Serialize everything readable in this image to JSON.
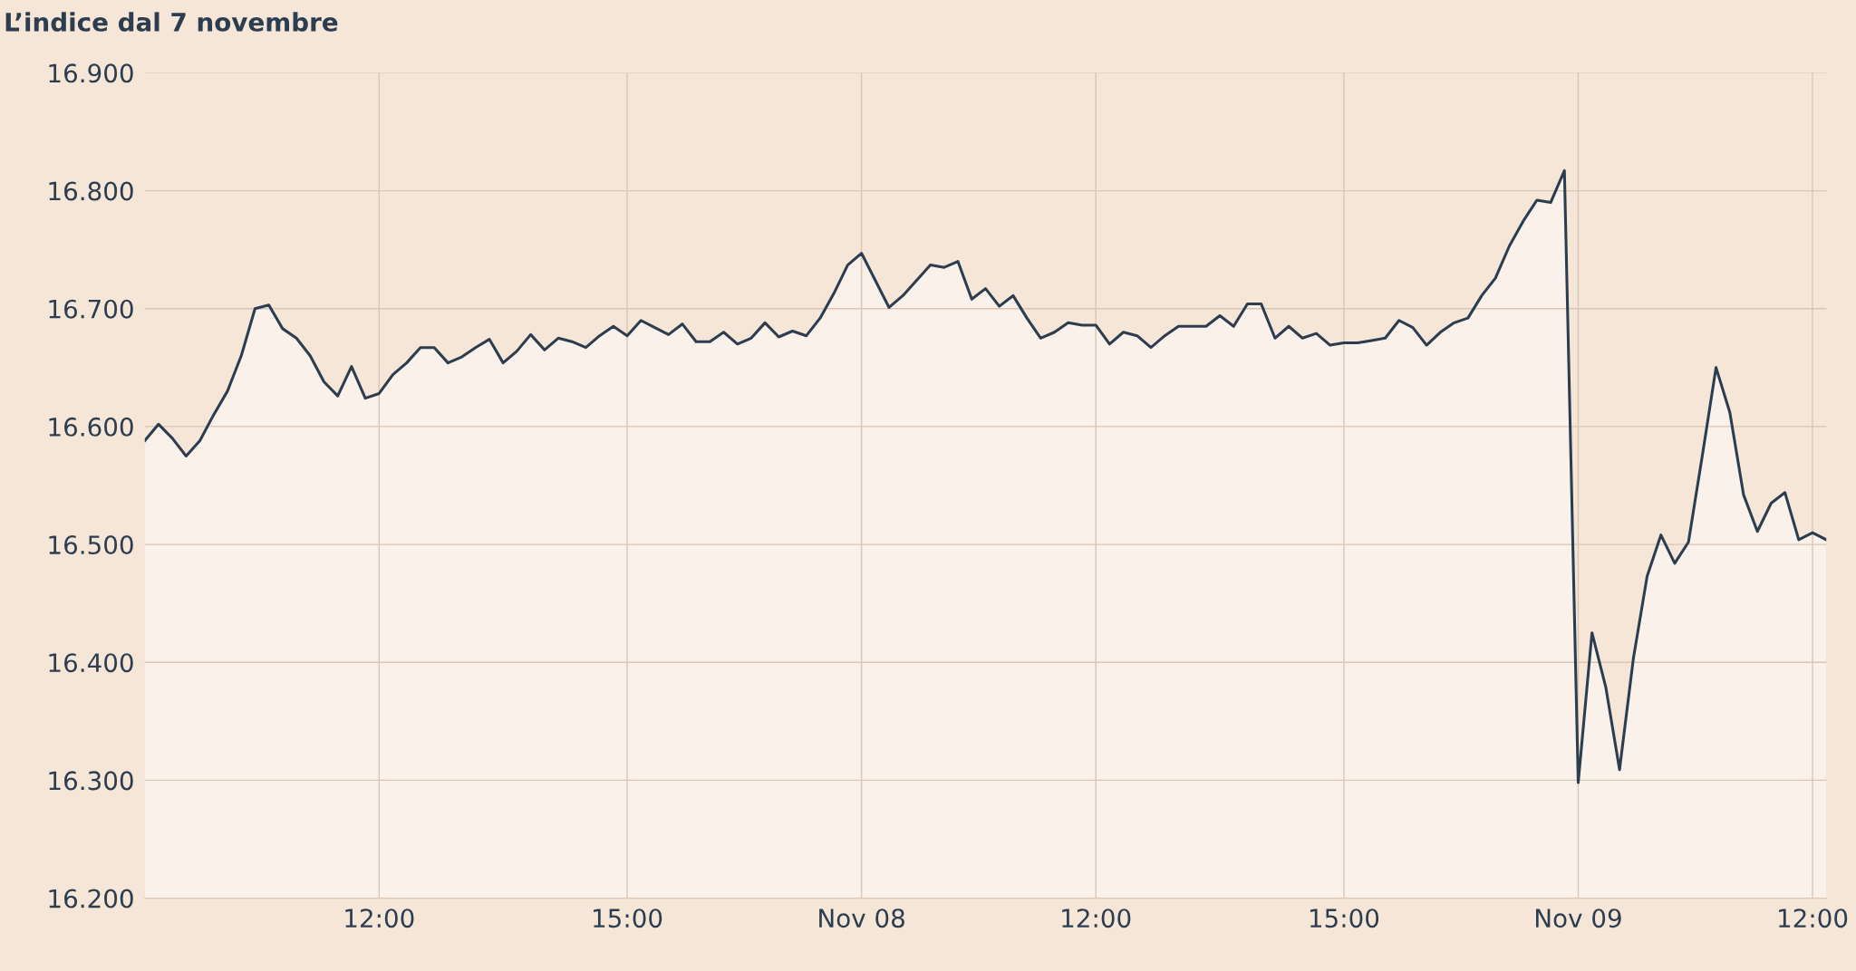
{
  "chart_data": {
    "type": "area",
    "title": "L’indice dal 7 novembre",
    "categories": [
      null,
      null,
      null,
      null,
      null,
      null,
      null,
      null,
      null,
      null,
      null,
      null,
      null,
      null,
      null,
      null,
      null,
      "12:00",
      null,
      null,
      null,
      null,
      null,
      null,
      null,
      null,
      null,
      null,
      null,
      null,
      null,
      null,
      null,
      null,
      null,
      "15:00",
      null,
      null,
      null,
      null,
      null,
      null,
      null,
      null,
      null,
      null,
      null,
      null,
      null,
      null,
      null,
      null,
      "Nov 08",
      null,
      null,
      null,
      null,
      null,
      null,
      null,
      null,
      null,
      null,
      null,
      null,
      null,
      null,
      null,
      null,
      "12:00",
      null,
      null,
      null,
      null,
      null,
      null,
      null,
      null,
      null,
      null,
      null,
      null,
      null,
      null,
      null,
      null,
      null,
      "15:00",
      null,
      null,
      null,
      null,
      null,
      null,
      null,
      null,
      null,
      null,
      null,
      null,
      null,
      null,
      null,
      null,
      "Nov 09",
      null,
      null,
      null,
      null,
      null,
      null,
      null,
      null,
      null,
      null,
      null,
      null,
      null,
      null,
      null,
      null,
      "12:00",
      null
    ],
    "series": [
      {
        "color": "#2b3d4f",
        "values": [
          16588,
          16602,
          16590,
          16575,
          16588,
          16610,
          16630,
          16660,
          16700,
          16703,
          16683,
          16675,
          16660,
          16638,
          16626,
          16651,
          16624,
          16628,
          16644,
          16654,
          16667,
          16667,
          16654,
          16659,
          16667,
          16674,
          16654,
          16664,
          16678,
          16665,
          16675,
          16672,
          16667,
          16677,
          16685,
          16677,
          16690,
          16684,
          16678,
          16687,
          16672,
          16672,
          16680,
          16670,
          16675,
          16688,
          16676,
          16681,
          16677,
          16692,
          16713,
          16737,
          16747,
          16724,
          16701,
          16711,
          16724,
          16737,
          16735,
          16740,
          16708,
          16717,
          16702,
          16711,
          16692,
          16675,
          16680,
          16688,
          16686,
          16686,
          16670,
          16680,
          16677,
          16667,
          16677,
          16685,
          16685,
          16685,
          16694,
          16685,
          16704,
          16704,
          16675,
          16685,
          16675,
          16679,
          16669,
          16671,
          16671,
          16673,
          16675,
          16690,
          16684,
          16669,
          16680,
          16688,
          16692,
          16711,
          16726,
          16753,
          16774,
          16792,
          16790,
          16817,
          16298,
          16425,
          16379,
          16309,
          16403,
          16473,
          16508,
          16484,
          16502,
          16575,
          16650,
          16612,
          16542,
          16511,
          16535,
          16544,
          16504,
          16510,
          16504
        ]
      }
    ],
    "ylim": [
      16200,
      16900
    ],
    "yticks": [
      {
        "value": 16200,
        "label": "16.200"
      },
      {
        "value": 16300,
        "label": "16.300"
      },
      {
        "value": 16400,
        "label": "16.400"
      },
      {
        "value": 16500,
        "label": "16.500"
      },
      {
        "value": 16600,
        "label": "16.600"
      },
      {
        "value": 16700,
        "label": "16.700"
      },
      {
        "value": 16800,
        "label": "16.800"
      },
      {
        "value": 16900,
        "label": "16.900"
      }
    ],
    "grid": true
  }
}
